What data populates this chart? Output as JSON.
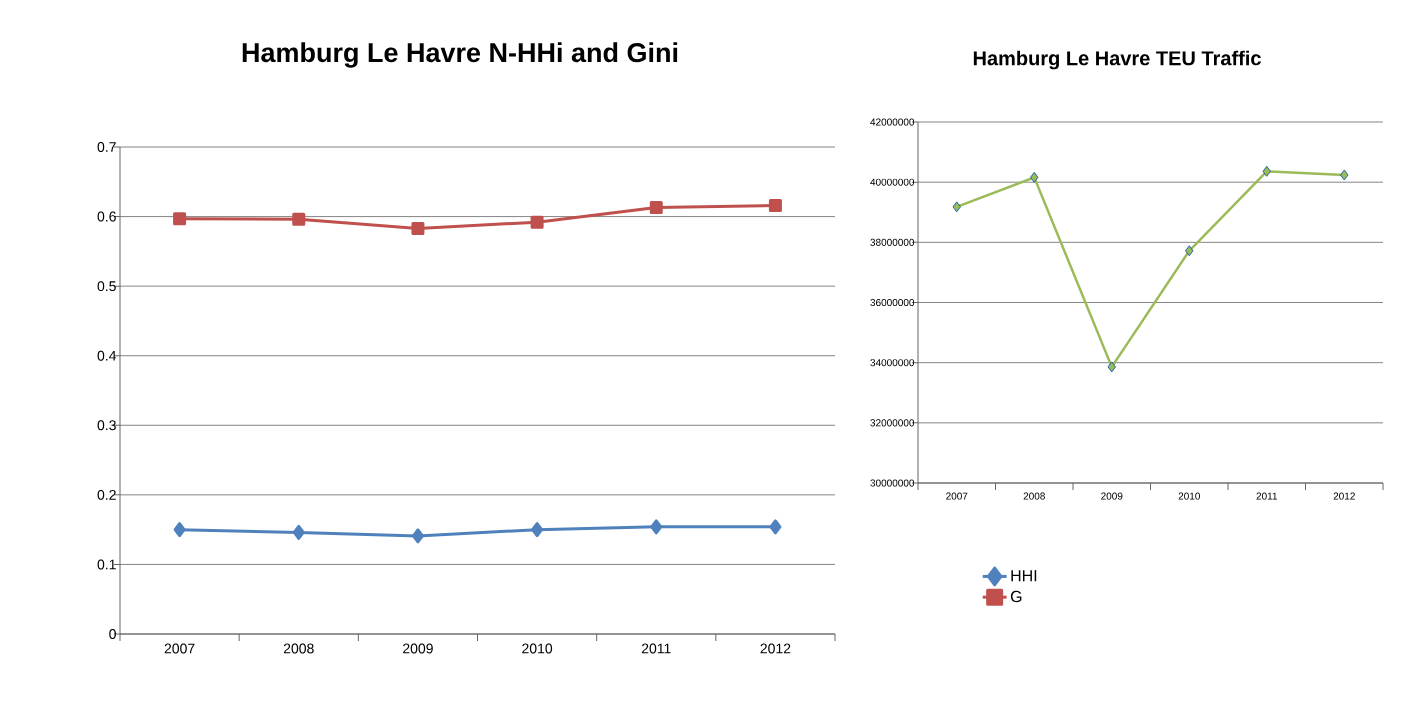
{
  "chart_data": [
    {
      "type": "line",
      "title": "Hamburg Le Havre N-HHi and Gini",
      "categories": [
        "2007",
        "2008",
        "2009",
        "2010",
        "2011",
        "2012"
      ],
      "ylim": [
        0,
        0.7
      ],
      "yticks": [
        0,
        0.1,
        0.2,
        0.3,
        0.4,
        0.5,
        0.6,
        0.7
      ],
      "grid": "y",
      "legend": "right",
      "series": [
        {
          "name": "HHI",
          "color": "#4f81bd",
          "marker": "diamond",
          "values": [
            0.15,
            0.146,
            0.141,
            0.15,
            0.154,
            0.154
          ]
        },
        {
          "name": "G",
          "color": "#c0504d",
          "marker": "square",
          "values": [
            0.597,
            0.596,
            0.583,
            0.592,
            0.613,
            0.616
          ]
        }
      ]
    },
    {
      "type": "line",
      "title": "Hamburg Le Havre TEU Traffic",
      "categories": [
        "2007",
        "2008",
        "2009",
        "2010",
        "2011",
        "2012"
      ],
      "ylim": [
        30000000,
        42000000
      ],
      "yticks": [
        30000000,
        32000000,
        34000000,
        36000000,
        38000000,
        40000000,
        42000000
      ],
      "grid": "y",
      "series": [
        {
          "color": "#9bbb59",
          "marker": "diamond",
          "values": [
            39180000,
            40160000,
            33860000,
            37720000,
            40360000,
            40240000
          ]
        }
      ]
    }
  ]
}
